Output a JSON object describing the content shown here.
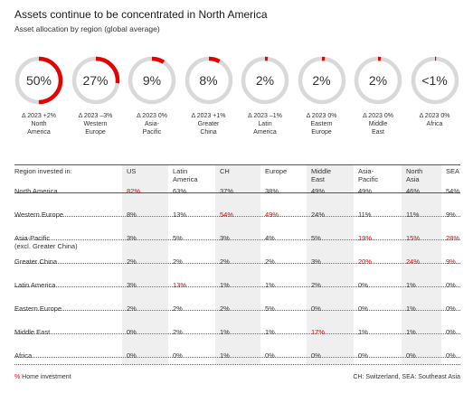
{
  "title": "Assets continue to be concentrated in North America",
  "subtitle": "Asset allocation by region (global average)",
  "colors": {
    "accent": "#e60000",
    "ring": "#d9d9d9",
    "band": "#efefef"
  },
  "chart_data": [
    {
      "type": "donut",
      "items": [
        {
          "value_label": "50%",
          "value": 50,
          "change": "Δ 2023 +2%",
          "region": [
            "North",
            "America"
          ]
        },
        {
          "value_label": "27%",
          "value": 27,
          "change": "Δ 2023 –3%",
          "region": [
            "Western",
            "Europe"
          ]
        },
        {
          "value_label": "9%",
          "value": 9,
          "change": "Δ 2023 0%",
          "region": [
            "Asia-",
            "Pacific"
          ]
        },
        {
          "value_label": "8%",
          "value": 8,
          "change": "Δ 2023 +1%",
          "region": [
            "Greater",
            "China"
          ]
        },
        {
          "value_label": "2%",
          "value": 2,
          "change": "Δ 2023 –1%",
          "region": [
            "Latin",
            "America"
          ]
        },
        {
          "value_label": "2%",
          "value": 2,
          "change": "Δ 2023 0%",
          "region": [
            "Eastern",
            "Europe"
          ]
        },
        {
          "value_label": "2%",
          "value": 2,
          "change": "Δ 2023 0%",
          "region": [
            "Middle",
            "East"
          ]
        },
        {
          "value_label": "<1%",
          "value": 0.5,
          "change": "Δ 2023 0%",
          "region": [
            "Africa",
            ""
          ]
        }
      ]
    },
    {
      "type": "table",
      "corner_header": "Region invested in:",
      "columns": [
        [
          "US",
          ""
        ],
        [
          "Latin",
          "America"
        ],
        [
          "CH",
          ""
        ],
        [
          "Europe",
          ""
        ],
        [
          "Middle",
          "East"
        ],
        [
          "Asia-",
          "Pacific"
        ],
        [
          "North",
          "Asia"
        ],
        [
          "SEA",
          ""
        ]
      ],
      "rows": [
        {
          "label": [
            "North America",
            ""
          ],
          "values": [
            "82%",
            "63%",
            "37%",
            "38%",
            "49%",
            "49%",
            "46%",
            "54%"
          ],
          "home": [
            0
          ]
        },
        {
          "label": [
            "Western Europe",
            ""
          ],
          "values": [
            "8%",
            "13%",
            "54%",
            "49%",
            "24%",
            "11%",
            "11%",
            "9%"
          ],
          "home": [
            2,
            3
          ]
        },
        {
          "label": [
            "Asia-Pacific",
            "(excl. Greater China)"
          ],
          "values": [
            "3%",
            "5%",
            "3%",
            "4%",
            "5%",
            "19%",
            "15%",
            "28%"
          ],
          "home": [
            5,
            6,
            7
          ]
        },
        {
          "label": [
            "Greater China",
            ""
          ],
          "values": [
            "2%",
            "2%",
            "2%",
            "2%",
            "3%",
            "20%",
            "24%",
            "9%"
          ],
          "home": [
            5,
            6,
            7
          ]
        },
        {
          "label": [
            "Latin America",
            ""
          ],
          "values": [
            "3%",
            "13%",
            "1%",
            "1%",
            "2%",
            "0%",
            "1%",
            "0%"
          ],
          "home": [
            1
          ]
        },
        {
          "label": [
            "Eastern Europe",
            ""
          ],
          "values": [
            "2%",
            "2%",
            "2%",
            "5%",
            "0%",
            "0%",
            "1%",
            "0%"
          ],
          "home": []
        },
        {
          "label": [
            "Middle East",
            ""
          ],
          "values": [
            "0%",
            "2%",
            "1%",
            "1%",
            "17%",
            "1%",
            "1%",
            "0%"
          ],
          "home": [
            4
          ]
        },
        {
          "label": [
            "Africa",
            ""
          ],
          "values": [
            "0%",
            "0%",
            "1%",
            "0%",
            "0%",
            "0%",
            "0%",
            "0%"
          ],
          "home": []
        }
      ]
    }
  ],
  "footnote_left": {
    "marker": "%",
    "text": " Home investment"
  },
  "footnote_right": "CH: Switzerland, SEA: Southeast Asia"
}
